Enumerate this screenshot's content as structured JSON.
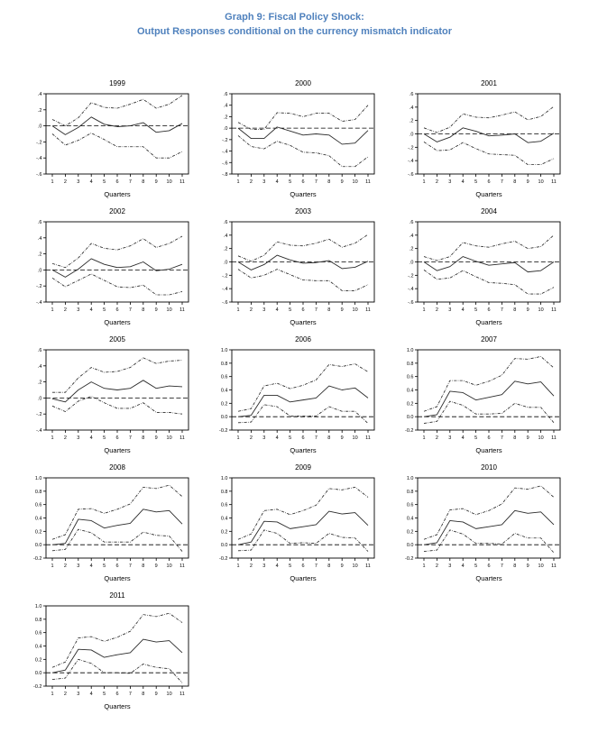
{
  "page": {
    "title_line1": "Graph 9: Fiscal Policy Shock:",
    "title_line2": "Output Responses conditional on the currency mismatch indicator",
    "title_color": "#4F81BD"
  },
  "chart_data": [
    {
      "type": "line",
      "title": "1999",
      "xlabel": "Quarters",
      "x": [
        1,
        2,
        3,
        4,
        5,
        6,
        7,
        8,
        9,
        10,
        11
      ],
      "ylim": [
        -0.6,
        0.4
      ],
      "ytick_step": 0.2,
      "ytick_labels": [
        ".4",
        ".2",
        ".0",
        "-.2",
        "-.4",
        "-.6"
      ],
      "zero_line": true,
      "grid": false,
      "legend": false,
      "series": [
        {
          "name": "upper-band",
          "style": "dashdot",
          "values": [
            0.08,
            0.0,
            0.1,
            0.29,
            0.23,
            0.22,
            0.27,
            0.33,
            0.22,
            0.27,
            0.38
          ]
        },
        {
          "name": "response",
          "style": "solid",
          "values": [
            0.0,
            -0.11,
            -0.02,
            0.11,
            0.02,
            -0.01,
            0.0,
            0.04,
            -0.08,
            -0.06,
            0.03
          ]
        },
        {
          "name": "lower-band",
          "style": "dashdot",
          "values": [
            -0.1,
            -0.24,
            -0.18,
            -0.09,
            -0.17,
            -0.26,
            -0.26,
            -0.26,
            -0.4,
            -0.4,
            -0.32
          ]
        }
      ]
    },
    {
      "type": "line",
      "title": "2000",
      "xlabel": "Quarters",
      "x": [
        1,
        2,
        3,
        4,
        5,
        6,
        7,
        8,
        9,
        10,
        11
      ],
      "ylim": [
        -0.8,
        0.6
      ],
      "ytick_step": 0.2,
      "ytick_labels": [
        ".6",
        ".4",
        ".2",
        ".0",
        "-.2",
        "-.4",
        "-.6",
        "-.8"
      ],
      "zero_line": true,
      "grid": false,
      "legend": false,
      "series": [
        {
          "name": "upper-band",
          "style": "dashdot",
          "values": [
            0.1,
            -0.02,
            -0.02,
            0.27,
            0.26,
            0.2,
            0.26,
            0.26,
            0.12,
            0.15,
            0.4
          ]
        },
        {
          "name": "response",
          "style": "solid",
          "values": [
            0.0,
            -0.18,
            -0.18,
            0.02,
            -0.05,
            -0.12,
            -0.1,
            -0.12,
            -0.28,
            -0.26,
            -0.04
          ]
        },
        {
          "name": "lower-band",
          "style": "dashdot",
          "values": [
            -0.13,
            -0.32,
            -0.36,
            -0.23,
            -0.3,
            -0.42,
            -0.43,
            -0.48,
            -0.67,
            -0.67,
            -0.5
          ]
        }
      ]
    },
    {
      "type": "line",
      "title": "2001",
      "xlabel": "Quarters",
      "x": [
        1,
        2,
        3,
        4,
        5,
        6,
        7,
        8,
        9,
        10,
        11
      ],
      "ylim": [
        -0.6,
        0.6
      ],
      "ytick_step": 0.2,
      "ytick_labels": [
        ".6",
        ".4",
        ".2",
        ".0",
        "-.2",
        "-.4",
        "-.6"
      ],
      "zero_line": true,
      "grid": false,
      "legend": false,
      "series": [
        {
          "name": "upper-band",
          "style": "dashdot",
          "values": [
            0.09,
            0.02,
            0.1,
            0.3,
            0.25,
            0.24,
            0.28,
            0.33,
            0.21,
            0.26,
            0.41
          ]
        },
        {
          "name": "response",
          "style": "solid",
          "values": [
            0.0,
            -0.12,
            -0.05,
            0.09,
            0.04,
            -0.03,
            -0.02,
            0.0,
            -0.13,
            -0.11,
            0.01
          ]
        },
        {
          "name": "lower-band",
          "style": "dashdot",
          "values": [
            -0.12,
            -0.25,
            -0.24,
            -0.13,
            -0.22,
            -0.3,
            -0.31,
            -0.32,
            -0.46,
            -0.46,
            -0.37
          ]
        }
      ]
    },
    {
      "type": "line",
      "title": "2002",
      "xlabel": "Quarters",
      "x": [
        1,
        2,
        3,
        4,
        5,
        6,
        7,
        8,
        9,
        10,
        11
      ],
      "ylim": [
        -0.4,
        0.6
      ],
      "ytick_step": 0.2,
      "ytick_labels": [
        ".6",
        ".4",
        ".2",
        ".0",
        "-.2",
        "-.4"
      ],
      "zero_line": true,
      "grid": false,
      "legend": false,
      "series": [
        {
          "name": "upper-band",
          "style": "dashdot",
          "values": [
            0.08,
            0.03,
            0.15,
            0.33,
            0.27,
            0.25,
            0.3,
            0.39,
            0.28,
            0.33,
            0.42
          ]
        },
        {
          "name": "response",
          "style": "solid",
          "values": [
            0.0,
            -0.09,
            0.01,
            0.14,
            0.07,
            0.03,
            0.04,
            0.1,
            -0.01,
            0.01,
            0.07
          ]
        },
        {
          "name": "lower-band",
          "style": "dashdot",
          "values": [
            -0.1,
            -0.21,
            -0.13,
            -0.05,
            -0.13,
            -0.21,
            -0.22,
            -0.19,
            -0.31,
            -0.31,
            -0.27
          ]
        }
      ]
    },
    {
      "type": "line",
      "title": "2003",
      "xlabel": "Quarters",
      "x": [
        1,
        2,
        3,
        4,
        5,
        6,
        7,
        8,
        9,
        10,
        11
      ],
      "ylim": [
        -0.6,
        0.6
      ],
      "ytick_step": 0.2,
      "ytick_labels": [
        ".6",
        ".4",
        ".2",
        ".0",
        "-.2",
        "-.4",
        "-.6"
      ],
      "zero_line": true,
      "grid": false,
      "legend": false,
      "series": [
        {
          "name": "upper-band",
          "style": "dashdot",
          "values": [
            0.09,
            0.01,
            0.1,
            0.3,
            0.25,
            0.24,
            0.28,
            0.34,
            0.22,
            0.28,
            0.41
          ]
        },
        {
          "name": "response",
          "style": "solid",
          "values": [
            0.0,
            -0.12,
            -0.04,
            0.1,
            0.03,
            -0.02,
            -0.01,
            0.02,
            -0.1,
            -0.08,
            0.01
          ]
        },
        {
          "name": "lower-band",
          "style": "dashdot",
          "values": [
            -0.11,
            -0.24,
            -0.2,
            -0.11,
            -0.19,
            -0.27,
            -0.28,
            -0.28,
            -0.43,
            -0.43,
            -0.34
          ]
        }
      ]
    },
    {
      "type": "line",
      "title": "2004",
      "xlabel": "Quarters",
      "x": [
        1,
        2,
        3,
        4,
        5,
        6,
        7,
        8,
        9,
        10,
        11
      ],
      "ylim": [
        -0.6,
        0.6
      ],
      "ytick_step": 0.2,
      "ytick_labels": [
        ".6",
        ".4",
        ".2",
        ".0",
        "-.2",
        "-.4",
        "-.6"
      ],
      "zero_line": true,
      "grid": false,
      "legend": false,
      "series": [
        {
          "name": "upper-band",
          "style": "dashdot",
          "values": [
            0.08,
            0.02,
            0.08,
            0.29,
            0.24,
            0.22,
            0.27,
            0.31,
            0.2,
            0.23,
            0.4
          ]
        },
        {
          "name": "response",
          "style": "solid",
          "values": [
            0.0,
            -0.13,
            -0.07,
            0.08,
            0.01,
            -0.05,
            -0.03,
            -0.01,
            -0.15,
            -0.13,
            0.0
          ]
        },
        {
          "name": "lower-band",
          "style": "dashdot",
          "values": [
            -0.12,
            -0.26,
            -0.24,
            -0.13,
            -0.22,
            -0.31,
            -0.32,
            -0.34,
            -0.48,
            -0.48,
            -0.38
          ]
        }
      ]
    },
    {
      "type": "line",
      "title": "2005",
      "xlabel": "Quarters",
      "x": [
        1,
        2,
        3,
        4,
        5,
        6,
        7,
        8,
        9,
        10,
        11
      ],
      "ylim": [
        -0.4,
        0.6
      ],
      "ytick_step": 0.2,
      "ytick_labels": [
        ".6",
        ".4",
        ".2",
        ".0",
        "-.2",
        "-.4"
      ],
      "zero_line": true,
      "grid": false,
      "legend": false,
      "series": [
        {
          "name": "upper-band",
          "style": "dashdot",
          "values": [
            0.07,
            0.07,
            0.25,
            0.38,
            0.32,
            0.33,
            0.38,
            0.5,
            0.43,
            0.46,
            0.47
          ]
        },
        {
          "name": "response",
          "style": "solid",
          "values": [
            -0.01,
            -0.05,
            0.1,
            0.2,
            0.12,
            0.1,
            0.12,
            0.22,
            0.12,
            0.15,
            0.14
          ]
        },
        {
          "name": "lower-band",
          "style": "dashdot",
          "values": [
            -0.1,
            -0.17,
            -0.04,
            0.02,
            -0.06,
            -0.13,
            -0.13,
            -0.06,
            -0.18,
            -0.18,
            -0.2
          ]
        }
      ]
    },
    {
      "type": "line",
      "title": "2006",
      "xlabel": "Quarters",
      "x": [
        1,
        2,
        3,
        4,
        5,
        6,
        7,
        8,
        9,
        10,
        11
      ],
      "ylim": [
        -0.2,
        1.0
      ],
      "ytick_step": 0.2,
      "ytick_labels": [
        "1.0",
        "0.8",
        "0.6",
        "0.4",
        "0.2",
        "0.0",
        "-0.2"
      ],
      "zero_line": true,
      "grid": false,
      "legend": false,
      "series": [
        {
          "name": "upper-band",
          "style": "dashdot",
          "values": [
            0.08,
            0.12,
            0.46,
            0.5,
            0.42,
            0.47,
            0.55,
            0.78,
            0.75,
            0.79,
            0.67
          ]
        },
        {
          "name": "response",
          "style": "solid",
          "values": [
            0.0,
            0.02,
            0.32,
            0.32,
            0.22,
            0.25,
            0.28,
            0.46,
            0.4,
            0.43,
            0.28
          ]
        },
        {
          "name": "lower-band",
          "style": "dashdot",
          "values": [
            -0.09,
            -0.08,
            0.18,
            0.15,
            0.01,
            0.01,
            0.01,
            0.15,
            0.08,
            0.08,
            -0.1
          ]
        }
      ]
    },
    {
      "type": "line",
      "title": "2007",
      "xlabel": "Quarters",
      "x": [
        1,
        2,
        3,
        4,
        5,
        6,
        7,
        8,
        9,
        10,
        11
      ],
      "ylim": [
        -0.2,
        1.0
      ],
      "ytick_step": 0.2,
      "ytick_labels": [
        "1.0",
        "0.8",
        "0.6",
        "0.4",
        "0.2",
        "0.0",
        "-0.2"
      ],
      "zero_line": true,
      "grid": false,
      "legend": false,
      "series": [
        {
          "name": "upper-band",
          "style": "dashdot",
          "values": [
            0.08,
            0.15,
            0.54,
            0.54,
            0.47,
            0.53,
            0.62,
            0.87,
            0.86,
            0.9,
            0.73
          ]
        },
        {
          "name": "response",
          "style": "solid",
          "values": [
            0.0,
            0.03,
            0.38,
            0.36,
            0.25,
            0.29,
            0.33,
            0.53,
            0.49,
            0.52,
            0.31
          ]
        },
        {
          "name": "lower-band",
          "style": "dashdot",
          "values": [
            -0.1,
            -0.07,
            0.23,
            0.17,
            0.04,
            0.04,
            0.05,
            0.2,
            0.14,
            0.14,
            -0.09
          ]
        }
      ]
    },
    {
      "type": "line",
      "title": "2008",
      "xlabel": "Quarters",
      "x": [
        1,
        2,
        3,
        4,
        5,
        6,
        7,
        8,
        9,
        10,
        11
      ],
      "ylim": [
        -0.2,
        1.0
      ],
      "ytick_step": 0.2,
      "ytick_labels": [
        "1.0",
        "0.8",
        "0.6",
        "0.4",
        "0.2",
        "0.0",
        "-0.2"
      ],
      "zero_line": true,
      "grid": false,
      "legend": false,
      "series": [
        {
          "name": "upper-band",
          "style": "dashdot",
          "values": [
            0.08,
            0.15,
            0.53,
            0.54,
            0.47,
            0.53,
            0.61,
            0.86,
            0.84,
            0.89,
            0.72
          ]
        },
        {
          "name": "response",
          "style": "solid",
          "values": [
            0.0,
            0.02,
            0.38,
            0.36,
            0.25,
            0.29,
            0.32,
            0.53,
            0.49,
            0.51,
            0.31
          ]
        },
        {
          "name": "lower-band",
          "style": "dashdot",
          "values": [
            -0.09,
            -0.07,
            0.23,
            0.18,
            0.04,
            0.04,
            0.04,
            0.19,
            0.14,
            0.13,
            -0.1
          ]
        }
      ]
    },
    {
      "type": "line",
      "title": "2009",
      "xlabel": "Quarters",
      "x": [
        1,
        2,
        3,
        4,
        5,
        6,
        7,
        8,
        9,
        10,
        11
      ],
      "ylim": [
        -0.2,
        1.0
      ],
      "ytick_step": 0.2,
      "ytick_labels": [
        "1.0",
        "0.8",
        "0.6",
        "0.4",
        "0.2",
        "0.0",
        "-0.2"
      ],
      "zero_line": true,
      "grid": false,
      "legend": false,
      "series": [
        {
          "name": "upper-band",
          "style": "dashdot",
          "values": [
            0.08,
            0.16,
            0.51,
            0.53,
            0.45,
            0.51,
            0.59,
            0.84,
            0.82,
            0.86,
            0.71
          ]
        },
        {
          "name": "response",
          "style": "solid",
          "values": [
            0.0,
            0.04,
            0.35,
            0.34,
            0.24,
            0.27,
            0.3,
            0.5,
            0.46,
            0.48,
            0.29
          ]
        },
        {
          "name": "lower-band",
          "style": "dashdot",
          "values": [
            -0.09,
            -0.08,
            0.22,
            0.17,
            0.02,
            0.03,
            0.02,
            0.17,
            0.11,
            0.1,
            -0.1
          ]
        }
      ]
    },
    {
      "type": "line",
      "title": "2010",
      "xlabel": "Quarters",
      "x": [
        1,
        2,
        3,
        4,
        5,
        6,
        7,
        8,
        9,
        10,
        11
      ],
      "ylim": [
        -0.2,
        1.0
      ],
      "ytick_step": 0.2,
      "ytick_labels": [
        "1.0",
        "0.8",
        "0.6",
        "0.4",
        "0.2",
        "0.0",
        "-0.2"
      ],
      "zero_line": true,
      "grid": false,
      "legend": false,
      "series": [
        {
          "name": "upper-band",
          "style": "dashdot",
          "values": [
            0.08,
            0.15,
            0.52,
            0.54,
            0.45,
            0.51,
            0.61,
            0.85,
            0.83,
            0.88,
            0.71
          ]
        },
        {
          "name": "response",
          "style": "solid",
          "values": [
            0.0,
            0.03,
            0.36,
            0.34,
            0.24,
            0.27,
            0.3,
            0.51,
            0.47,
            0.49,
            0.3
          ]
        },
        {
          "name": "lower-band",
          "style": "dashdot",
          "values": [
            -0.1,
            -0.08,
            0.22,
            0.16,
            0.02,
            0.02,
            0.01,
            0.17,
            0.1,
            0.1,
            -0.12
          ]
        }
      ]
    },
    {
      "type": "line",
      "title": "2011",
      "xlabel": "Quarters",
      "x": [
        1,
        2,
        3,
        4,
        5,
        6,
        7,
        8,
        9,
        10,
        11
      ],
      "ylim": [
        -0.2,
        1.0
      ],
      "ytick_step": 0.2,
      "ytick_labels": [
        "1.0",
        "0.8",
        "0.6",
        "0.4",
        "0.2",
        "0.0",
        "-0.2"
      ],
      "zero_line": true,
      "grid": false,
      "legend": false,
      "series": [
        {
          "name": "upper-band",
          "style": "dashdot",
          "values": [
            0.08,
            0.16,
            0.52,
            0.54,
            0.47,
            0.53,
            0.62,
            0.87,
            0.84,
            0.89,
            0.75
          ]
        },
        {
          "name": "response",
          "style": "solid",
          "values": [
            0.0,
            0.04,
            0.35,
            0.34,
            0.23,
            0.27,
            0.3,
            0.5,
            0.46,
            0.48,
            0.3
          ]
        },
        {
          "name": "lower-band",
          "style": "dashdot",
          "values": [
            -0.1,
            -0.08,
            0.2,
            0.14,
            0.0,
            0.0,
            -0.01,
            0.13,
            0.08,
            0.06,
            -0.15
          ]
        }
      ]
    }
  ]
}
